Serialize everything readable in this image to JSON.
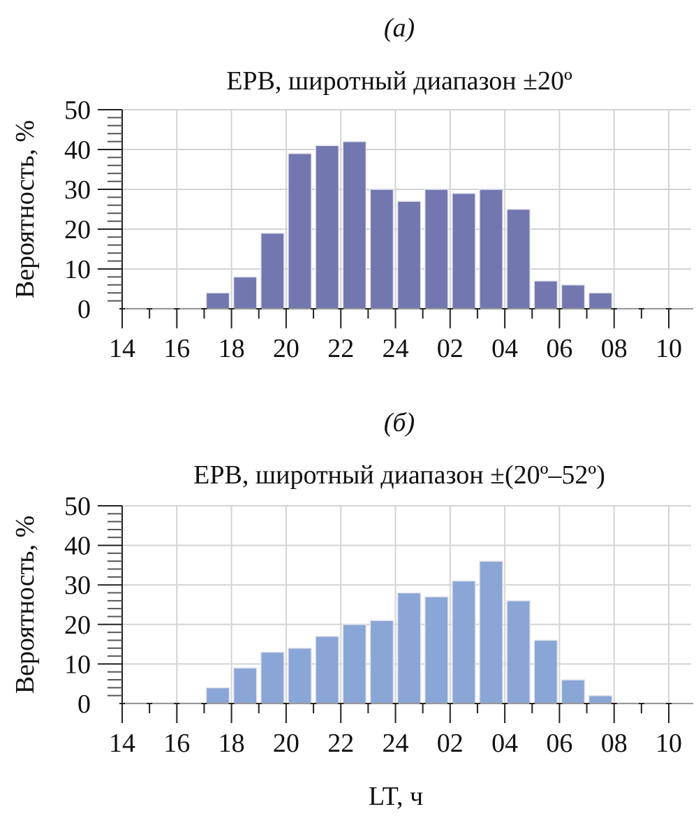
{
  "chart_data": [
    {
      "type": "bar",
      "panel_label": "(а)",
      "title": "EPB, широтный диапазон ±20º",
      "ylabel": "Вероятность, %",
      "xlabel": "",
      "ylim": [
        0,
        50
      ],
      "yticks": [
        "0",
        "10",
        "20",
        "30",
        "40",
        "50"
      ],
      "xticks": [
        "14",
        "16",
        "18",
        "20",
        "22",
        "24",
        "02",
        "04",
        "06",
        "08",
        "10"
      ],
      "bins": [
        "14-15",
        "15-16",
        "16-17",
        "17-18",
        "18-19",
        "19-20",
        "20-21",
        "21-22",
        "22-23",
        "23-24",
        "00-01",
        "01-02",
        "02-03",
        "03-04",
        "04-05",
        "05-06",
        "06-07",
        "07-08",
        "08-09",
        "09-10"
      ],
      "values": [
        0,
        0,
        0,
        4,
        8,
        19,
        39,
        41,
        42,
        30,
        27,
        30,
        29,
        30,
        25,
        7,
        6,
        4,
        0,
        0
      ],
      "color": "#7377b0",
      "grid": true
    },
    {
      "type": "bar",
      "panel_label": "(б)",
      "title": "EPB, широтный диапазон ±(20º–52º)",
      "ylabel": "Вероятность, %",
      "xlabel": "LT, ч",
      "ylim": [
        0,
        50
      ],
      "yticks": [
        "0",
        "10",
        "20",
        "30",
        "40",
        "50"
      ],
      "xticks": [
        "14",
        "16",
        "18",
        "20",
        "22",
        "24",
        "02",
        "04",
        "06",
        "08",
        "10"
      ],
      "bins": [
        "14-15",
        "15-16",
        "16-17",
        "17-18",
        "18-19",
        "19-20",
        "20-21",
        "21-22",
        "22-23",
        "23-24",
        "00-01",
        "01-02",
        "02-03",
        "03-04",
        "04-05",
        "05-06",
        "06-07",
        "07-08",
        "08-09",
        "09-10"
      ],
      "values": [
        0,
        0,
        0,
        4,
        9,
        13,
        14,
        17,
        20,
        21,
        28,
        27,
        31,
        36,
        26,
        16,
        6,
        2,
        0,
        0
      ],
      "color": "#8aa6d6",
      "grid": true
    }
  ]
}
